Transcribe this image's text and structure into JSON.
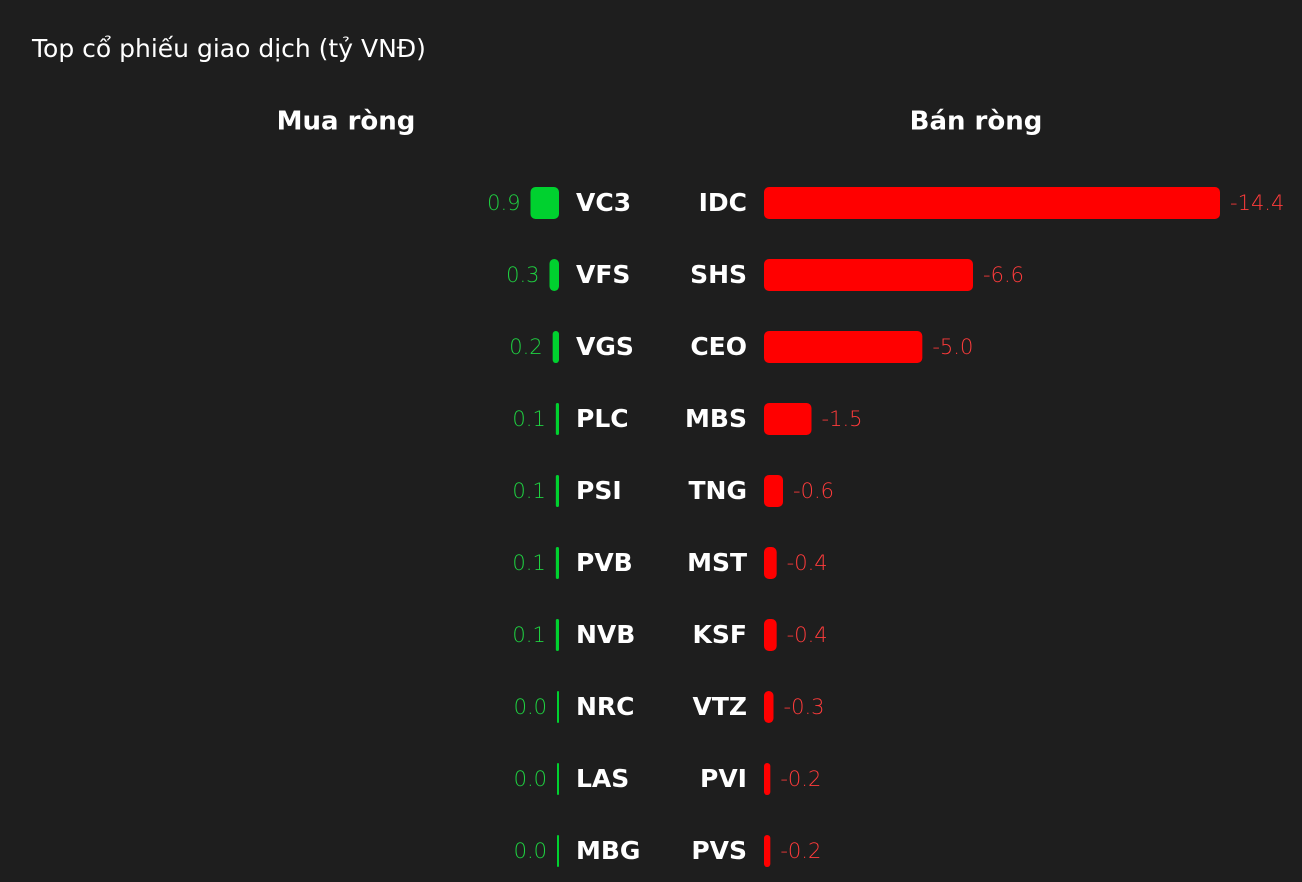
{
  "title": "Top cổ phiếu giao dịch (tỷ VNĐ)",
  "chart_data": [
    {
      "type": "bar",
      "title": "Mua ròng",
      "color": "#00d12f",
      "categories": [
        "VC3",
        "VFS",
        "VGS",
        "PLC",
        "PSI",
        "PVB",
        "NVB",
        "NRC",
        "LAS",
        "MBG"
      ],
      "values": [
        0.9,
        0.3,
        0.2,
        0.1,
        0.1,
        0.1,
        0.1,
        0,
        0,
        0
      ],
      "value_labels": [
        "0.9",
        "0.3",
        "0.2",
        "0.1",
        "0.1",
        "0.1",
        "0.1",
        "0.0",
        "0.0",
        "0.0"
      ]
    },
    {
      "type": "bar",
      "title": "Bán ròng",
      "color": "#ff0000",
      "categories": [
        "IDC",
        "SHS",
        "CEO",
        "MBS",
        "TNG",
        "MST",
        "KSF",
        "VTZ",
        "PVI",
        "PVS"
      ],
      "values": [
        -14.4,
        -6.6,
        -5,
        -1.5,
        -0.6,
        -0.4,
        -0.4,
        -0.3,
        -0.2,
        -0.2
      ],
      "value_labels": [
        "-14.4",
        "-6.6",
        "-5.0",
        "-1.5",
        "-0.6",
        "-0.4",
        "-0.4",
        "-0.3",
        "-0.2",
        "-0.2"
      ]
    }
  ]
}
